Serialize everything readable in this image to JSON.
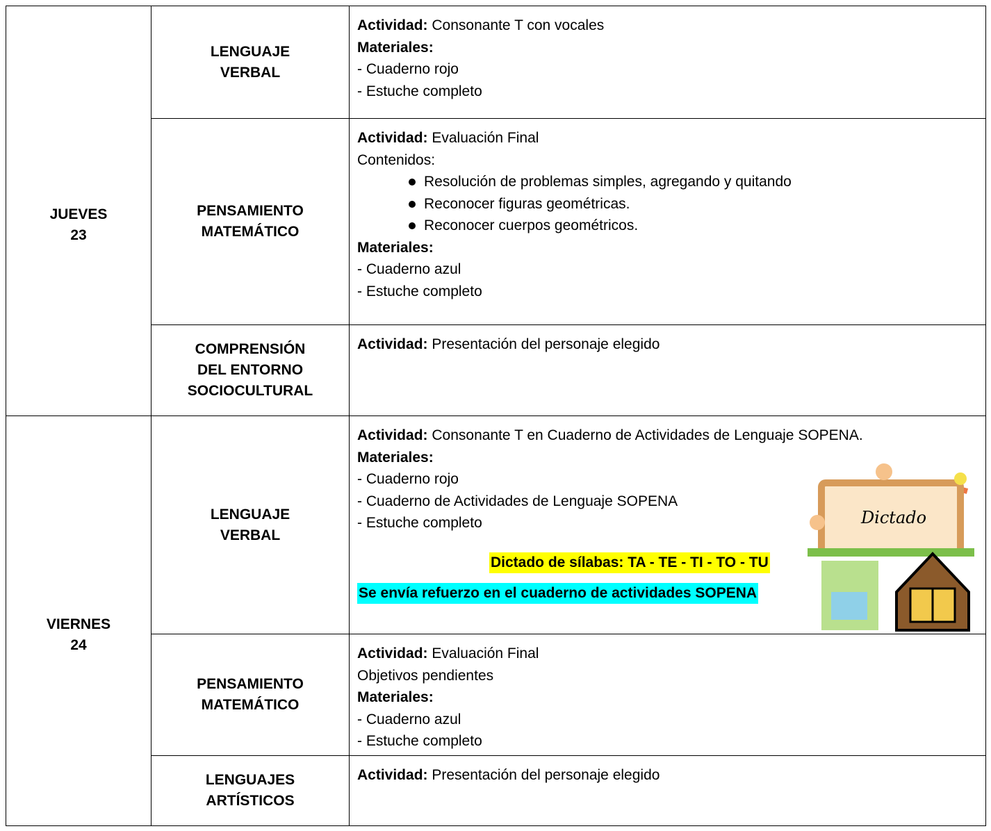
{
  "schedule": [
    {
      "day": "JUEVES",
      "date": "23",
      "subjects": [
        {
          "name": [
            "LENGUAJE",
            "VERBAL"
          ],
          "activity_label": "Actividad:",
          "activity": "Consonante T con vocales",
          "materials_label": "Materiales:",
          "materials": [
            "- Cuaderno rojo",
            "- Estuche completo"
          ]
        },
        {
          "name": [
            "PENSAMIENTO",
            "MATEMÁTICO"
          ],
          "activity_label": "Actividad:",
          "activity": " Evaluación Final",
          "contents_label": "Contenidos:",
          "contents": [
            "Resolución de problemas simples, agregando y quitando",
            "Reconocer figuras geométricas.",
            "Reconocer cuerpos geométricos."
          ],
          "materials_label": "Materiales:",
          "materials": [
            "- Cuaderno azul",
            "- Estuche completo"
          ]
        },
        {
          "name": [
            "COMPRENSIÓN",
            "DEL ENTORNO",
            "SOCIOCULTURAL"
          ],
          "activity_label": "Actividad:",
          "activity": "Presentación del personaje elegido"
        }
      ]
    },
    {
      "day": "VIERNES",
      "date": "24",
      "subjects": [
        {
          "name": [
            "LENGUAJE",
            "VERBAL"
          ],
          "activity_label": "Actividad:",
          "activity": "Consonante T en Cuaderno de Actividades de Lenguaje SOPENA.",
          "materials_label": "Materiales:",
          "materials": [
            "- Cuaderno rojo",
            "- Cuaderno de Actividades de Lenguaje SOPENA",
            "- Estuche completo"
          ],
          "notes": [
            "Dictado de sílabas: TA - TE - TI - TO - TU",
            "Se envía refuerzo en el cuaderno de actividades SOPENA"
          ],
          "image_label": "Dictado"
        },
        {
          "name": [
            "PENSAMIENTO",
            "MATEMÁTICO"
          ],
          "activity_label": "Actividad:",
          "activity": "Evaluación Final",
          "objectives": "Objetivos pendientes",
          "materials_label": "Materiales:",
          "materials": [
            "- Cuaderno azul",
            "- Estuche completo"
          ]
        },
        {
          "name": [
            "LENGUAJES",
            "ARTÍSTICOS"
          ],
          "activity_label": "Actividad:",
          "activity": "Presentación del personaje elegido"
        }
      ]
    }
  ]
}
